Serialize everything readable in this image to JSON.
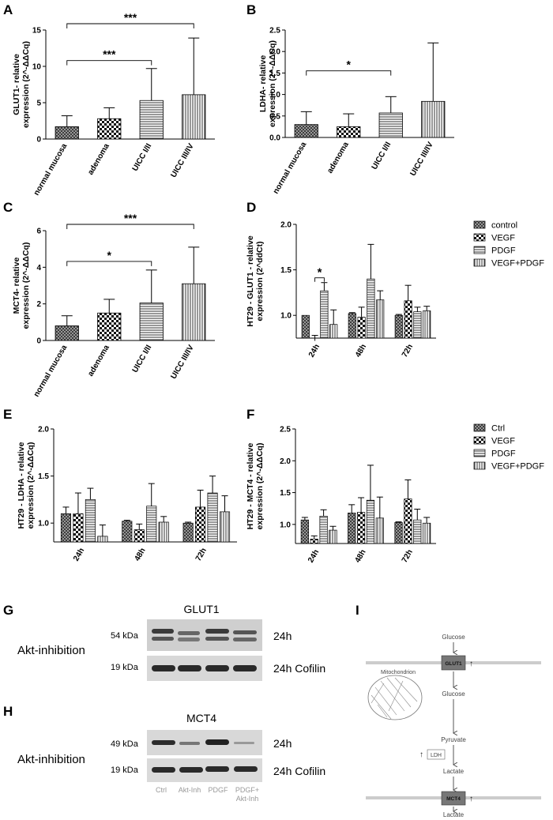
{
  "patterns": {
    "crosshatch": "crosshatch",
    "checker": "checker",
    "hstripe": "hstripe",
    "vstripe": "vstripe"
  },
  "chart_data": [
    {
      "panel": "A",
      "type": "bar",
      "ylabel": "GLUT1- relative expression (2^-ΔΔCq)",
      "categories": [
        "normal mucosa",
        "adenoma",
        "UICC I/II",
        "UICC III/IV"
      ],
      "values": [
        1.7,
        2.8,
        5.3,
        6.1
      ],
      "errors": [
        1.5,
        1.5,
        4.4,
        7.8
      ],
      "ylim": [
        0,
        15
      ],
      "yticks": [
        0,
        5,
        10,
        15
      ],
      "patterns": [
        "crosshatch",
        "checker",
        "hstripe",
        "vstripe"
      ],
      "significance": [
        {
          "from": 0,
          "to": 2,
          "label": "***"
        },
        {
          "from": 0,
          "to": 3,
          "label": "***"
        }
      ]
    },
    {
      "panel": "B",
      "type": "bar",
      "ylabel": "LDHA- relative expression (2^-ΔΔCq)",
      "categories": [
        "normal mucosa",
        "adenoma",
        "UICC I/II",
        "UICC III/IV"
      ],
      "values": [
        0.3,
        0.25,
        0.57,
        0.84
      ],
      "errors": [
        0.3,
        0.3,
        0.38,
        1.36
      ],
      "ylim": [
        0,
        2.5
      ],
      "yticks": [
        0.0,
        0.5,
        1.0,
        1.5,
        2.0,
        2.5
      ],
      "patterns": [
        "crosshatch",
        "checker",
        "hstripe",
        "vstripe"
      ],
      "significance": [
        {
          "from": 0,
          "to": 2,
          "label": "*"
        }
      ]
    },
    {
      "panel": "C",
      "type": "bar",
      "ylabel": "MCT4- relative expression (2^-ΔΔCq)",
      "categories": [
        "normal mucosa",
        "adenoma",
        "UICC I/II",
        "UICC III/IV"
      ],
      "values": [
        0.8,
        1.5,
        2.05,
        3.1
      ],
      "errors": [
        0.55,
        0.75,
        1.8,
        2.0
      ],
      "ylim": [
        0,
        6
      ],
      "yticks": [
        0,
        2,
        4,
        6
      ],
      "patterns": [
        "crosshatch",
        "checker",
        "hstripe",
        "vstripe"
      ],
      "significance": [
        {
          "from": 0,
          "to": 2,
          "label": "*"
        },
        {
          "from": 0,
          "to": 3,
          "label": "***"
        }
      ]
    },
    {
      "panel": "D",
      "type": "bar",
      "ylabel": "HT29 - GLUT1 - relative expression (2^ddCt)",
      "categories": [
        "24h",
        "48h",
        "72h"
      ],
      "series": [
        {
          "name": "control",
          "values": [
            1.0,
            1.02,
            1.0
          ],
          "errors": [
            0,
            0.01,
            0.01
          ]
        },
        {
          "name": "VEGF",
          "values": [
            0.72,
            0.98,
            1.16
          ],
          "errors": [
            0.06,
            0.11,
            0.17
          ]
        },
        {
          "name": "PDGF",
          "values": [
            1.27,
            1.4,
            1.04
          ],
          "errors": [
            0.09,
            0.38,
            0.05
          ]
        },
        {
          "name": "VEGF+PDGF",
          "values": [
            0.9,
            1.17,
            1.05
          ],
          "errors": [
            0.16,
            0.1,
            0.05
          ]
        }
      ],
      "ylim": [
        0.75,
        2.0
      ],
      "yticks": [
        1.0,
        1.5,
        2.0
      ],
      "patterns": [
        "crosshatch",
        "checker",
        "hstripe",
        "vstripe"
      ],
      "significance": [
        {
          "group": 0,
          "from": 1,
          "to": 2,
          "label": "*"
        }
      ],
      "legend": [
        "control",
        "VEGF",
        "PDGF",
        "VEGF+PDGF"
      ]
    },
    {
      "panel": "E",
      "type": "bar",
      "ylabel": "HT29 - LDHA - relative expression (2^-ΔΔCq)",
      "categories": [
        "24h",
        "48h",
        "72h"
      ],
      "series": [
        {
          "name": "Ctrl",
          "values": [
            1.1,
            1.02,
            1.0
          ],
          "errors": [
            0.07,
            0.01,
            0.01
          ]
        },
        {
          "name": "VEGF",
          "values": [
            1.1,
            0.93,
            1.17
          ],
          "errors": [
            0.22,
            0.06,
            0.18
          ]
        },
        {
          "name": "PDGF",
          "values": [
            1.25,
            1.18,
            1.32
          ],
          "errors": [
            0.12,
            0.24,
            0.18
          ]
        },
        {
          "name": "VEGF+PDGF",
          "values": [
            0.86,
            1.01,
            1.12
          ],
          "errors": [
            0.12,
            0.06,
            0.17
          ]
        }
      ],
      "ylim": [
        0.8,
        2.0
      ],
      "yticks": [
        1.0,
        1.5,
        2.0
      ],
      "patterns": [
        "crosshatch",
        "checker",
        "hstripe",
        "vstripe"
      ],
      "significance": []
    },
    {
      "panel": "F",
      "type": "bar",
      "ylabel": "HT29 - MCT4 - relative expression (2^-ΔΔCq)",
      "categories": [
        "24h",
        "48h",
        "72h"
      ],
      "series": [
        {
          "name": "Ctrl",
          "values": [
            1.07,
            1.18,
            1.03
          ],
          "errors": [
            0.04,
            0.13,
            0.01
          ]
        },
        {
          "name": "VEGF",
          "values": [
            0.77,
            1.19,
            1.4
          ],
          "errors": [
            0.05,
            0.23,
            0.3
          ]
        },
        {
          "name": "PDGF",
          "values": [
            1.13,
            1.38,
            1.07
          ],
          "errors": [
            0.1,
            0.55,
            0.17
          ]
        },
        {
          "name": "VEGF+PDGF",
          "values": [
            0.91,
            1.1,
            1.02
          ],
          "errors": [
            0.06,
            0.33,
            0.09
          ]
        }
      ],
      "ylim": [
        0.7,
        2.5
      ],
      "yticks": [
        1.0,
        1.5,
        2.0,
        2.5
      ],
      "patterns": [
        "crosshatch",
        "checker",
        "hstripe",
        "vstripe"
      ],
      "significance": [],
      "legend": [
        "Ctrl",
        "VEGF",
        "PDGF",
        "VEGF+PDGF"
      ]
    }
  ],
  "labels": {
    "A": "A",
    "B": "B",
    "C": "C",
    "D": "D",
    "E": "E",
    "F": "F",
    "G": "G",
    "H": "H",
    "I": "I"
  },
  "westerns": {
    "glut1_title": "GLUT1",
    "mct4_title": "MCT4",
    "akt_label": "Akt-inhibition",
    "glut1_kda": "54 kDa",
    "mct4_kda": "49 kDa",
    "cofilin_kda": "19 kDa",
    "time_24h": "24h",
    "cofilin_24h": "24h Cofilin",
    "lanes": [
      "Ctrl",
      "Akt-Inh",
      "PDGF",
      "PDGF+",
      "Akt-Inh"
    ]
  },
  "pathway": {
    "glucose_top": "Glucose",
    "glut1": "GLUT1",
    "mitochondrion": "Mitochondrion",
    "glucose_mid": "Glucose",
    "pyruvate": "Pyruvate",
    "ldh": "LDH",
    "lactate_mid": "Lactate",
    "mct4": "MCT4",
    "lactate_bottom": "Lactate",
    "up_arrow": "↑"
  }
}
